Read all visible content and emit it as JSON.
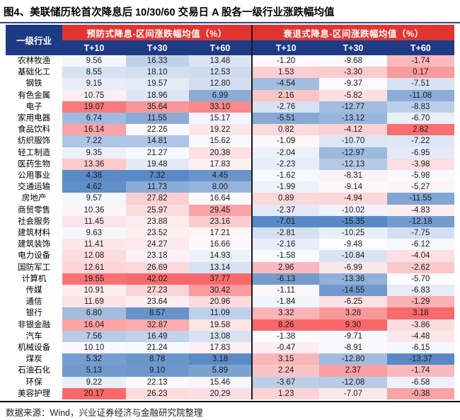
{
  "title": "图4、美联储历轮首次降息后 10/30/60 交易日 A 股各一级行业涨跌幅均值",
  "footer": "数据来源：Wind，兴业证券经济与金融研究院整理",
  "colors": {
    "header_red": "#E23530",
    "header_navy": "#1D3A85",
    "scale_low": "#5A8AC6",
    "scale_mid": "#FCFCFF",
    "scale_high": "#F8696B"
  },
  "table": {
    "corner_header": "一级行业",
    "groups": [
      {
        "label": "预防式降息-区间涨跌幅均值（%）",
        "cols": [
          "T+10",
          "T+30",
          "T+60"
        ]
      },
      {
        "label": "衰退式降息-区间涨跌幅均值（%）",
        "cols": [
          "T+10",
          "T+30",
          "T+60"
        ]
      }
    ],
    "rows": [
      {
        "sector": "农林牧渔",
        "values": [
          "9.56",
          "16.33",
          "13.48",
          "-1.20",
          "-9.68",
          "-1.74"
        ]
      },
      {
        "sector": "基础化工",
        "values": [
          "8.55",
          "18.10",
          "12.53",
          "1.53",
          "-3.30",
          "0.17"
        ]
      },
      {
        "sector": "钢铁",
        "values": [
          "9.15",
          "19.57",
          "12.80",
          "-4.54",
          "-9.37",
          "-7.51"
        ]
      },
      {
        "sector": "有色金属",
        "values": [
          "10.75",
          "18.96",
          "6.99",
          "2.16",
          "-5.82",
          "-11.08"
        ]
      },
      {
        "sector": "电子",
        "values": [
          "19.07",
          "35.64",
          "33.10",
          "-2.76",
          "-12.77",
          "-8.83"
        ]
      },
      {
        "sector": "家用电器",
        "values": [
          "6.74",
          "11.55",
          "15.17",
          "-5.51",
          "-13.12",
          "-6.70"
        ]
      },
      {
        "sector": "食品饮料",
        "values": [
          "16.14",
          "22.26",
          "19.22",
          "0.82",
          "-4.12",
          "2.82"
        ]
      },
      {
        "sector": "纺织服饰",
        "values": [
          "7.22",
          "14.81",
          "15.62",
          "-1.09",
          "-10.70",
          "-7.22"
        ]
      },
      {
        "sector": "轻工制造",
        "values": [
          "9.35",
          "21.27",
          "20.38",
          "-2.04",
          "-12.97",
          "-6.95"
        ]
      },
      {
        "sector": "医药生物",
        "values": [
          "13.36",
          "19.48",
          "17.83",
          "-2.23",
          "-12.13",
          "-3.98"
        ]
      },
      {
        "sector": "公用事业",
        "values": [
          "4.38",
          "7.32",
          "4.45",
          "-1.62",
          "-8.31",
          "-5.98"
        ]
      },
      {
        "sector": "交通运输",
        "values": [
          "4.62",
          "11.73",
          "8.00",
          "-1.99",
          "-9.14",
          "-5.27"
        ]
      },
      {
        "sector": "房地产",
        "values": [
          "9.57",
          "27.82",
          "16.64",
          "0.89",
          "-4.94",
          "-11.55"
        ]
      },
      {
        "sector": "商贸零售",
        "values": [
          "10.36",
          "25.97",
          "29.45",
          "-2.37",
          "-10.02",
          "-4.83"
        ]
      },
      {
        "sector": "社会服务",
        "values": [
          "11.45",
          "23.88",
          "23.16",
          "-7.01",
          "-15.35",
          "-12.18"
        ]
      },
      {
        "sector": "建筑材料",
        "values": [
          "9.63",
          "23.52",
          "17.21",
          "-2.81",
          "-10.25",
          "-7.75"
        ]
      },
      {
        "sector": "建筑装饰",
        "values": [
          "11.41",
          "24.27",
          "16.66",
          "-2.16",
          "-9.48",
          "-6.12"
        ]
      },
      {
        "sector": "电力设备",
        "values": [
          "12.08",
          "23.18",
          "14.93",
          "-1.58",
          "-10.84",
          "-4.04"
        ]
      },
      {
        "sector": "国防军工",
        "values": [
          "12.61",
          "26.69",
          "13.14",
          "2.96",
          "-6.99",
          "-2.62"
        ]
      },
      {
        "sector": "计算机",
        "values": [
          "19.55",
          "42.02",
          "37.77",
          "-6.13",
          "-13.36",
          "-5.70"
        ]
      },
      {
        "sector": "传媒",
        "values": [
          "10.91",
          "27.23",
          "30.42",
          "-1.11",
          "-14.55",
          "-6.83"
        ]
      },
      {
        "sector": "通信",
        "values": [
          "11.69",
          "23.64",
          "20.96",
          "-1.84",
          "-6.25",
          "-1.29"
        ]
      },
      {
        "sector": "银行",
        "values": [
          "6.80",
          "8.57",
          "11.09",
          "3.32",
          "3.28",
          "3.18"
        ]
      },
      {
        "sector": "非银金融",
        "values": [
          "16.04",
          "32.87",
          "19.58",
          "8.26",
          "9.30",
          "-3.86"
        ]
      },
      {
        "sector": "汽车",
        "values": [
          "7.56",
          "16.49",
          "13.08",
          "-1.38",
          "-9.71",
          "-4.48"
        ]
      },
      {
        "sector": "机械设备",
        "values": [
          "10.10",
          "21.24",
          "17.83",
          "-0.47",
          "-8.91",
          "-6.15"
        ]
      },
      {
        "sector": "煤炭",
        "values": [
          "5.32",
          "8.78",
          "3.18",
          "3.15",
          "-12.80",
          "-13.37"
        ]
      },
      {
        "sector": "石油石化",
        "values": [
          "5.13",
          "9.10",
          "5.89",
          "2.24",
          "2.37",
          "-1.74"
        ]
      },
      {
        "sector": "环保",
        "values": [
          "9.22",
          "22.13",
          "15.46",
          "-3.67",
          "-12.08",
          "-6.58"
        ]
      },
      {
        "sector": "美容护理",
        "values": [
          "20.17",
          "26.23",
          "20.29",
          "1.23",
          "-7.07",
          "-0.38"
        ]
      }
    ]
  }
}
